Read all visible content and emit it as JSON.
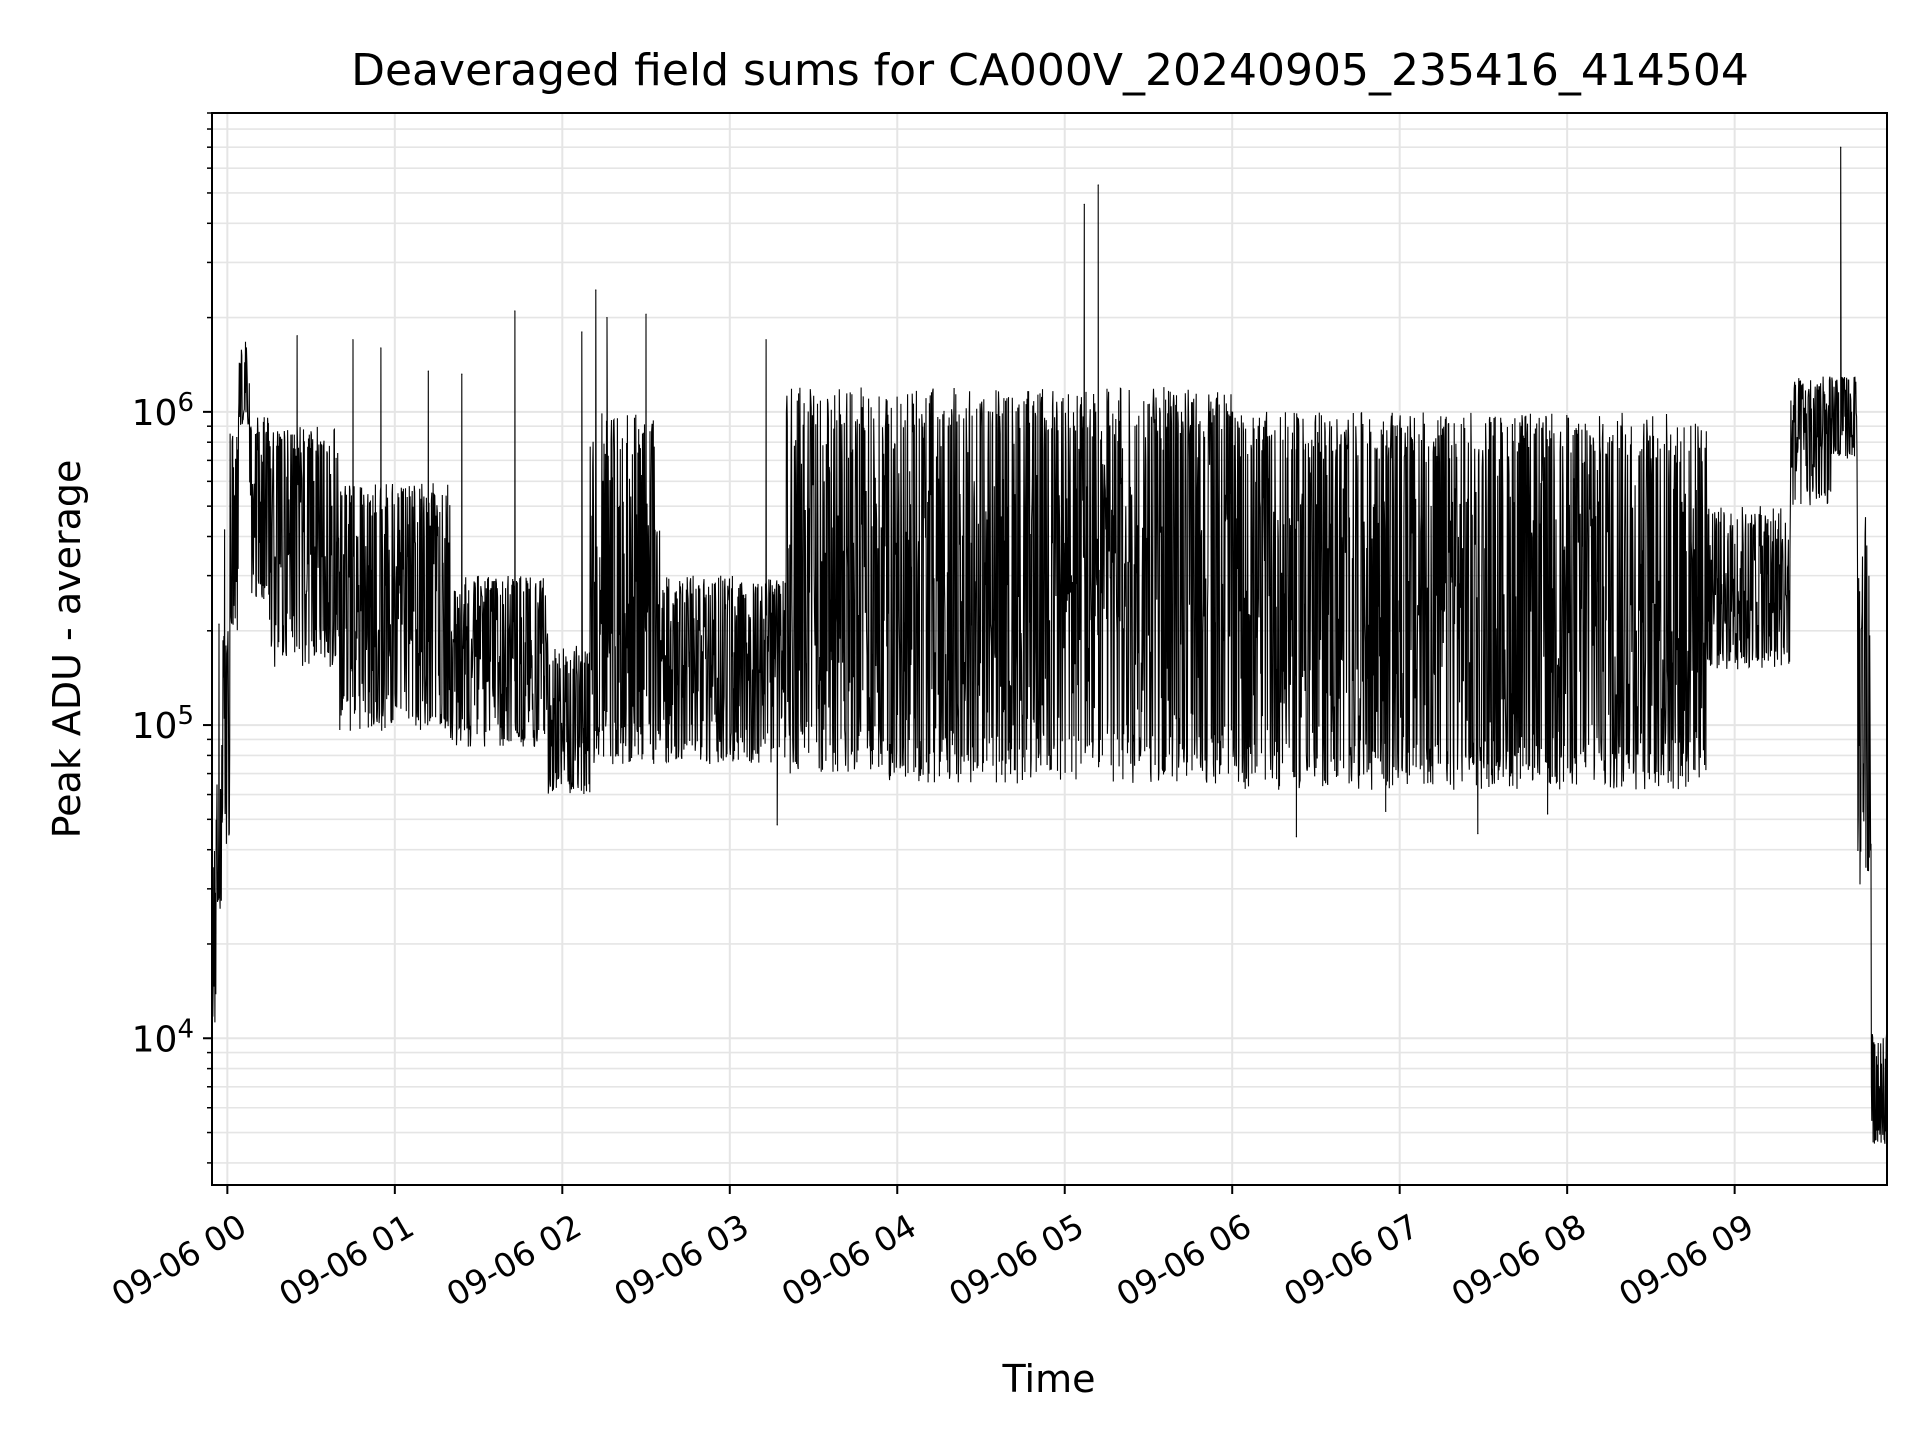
{
  "chart_data": {
    "type": "line",
    "title": "Deaveraged field sums for CA000V_20240905_235416_414504",
    "xlabel": "Time",
    "ylabel": "Peak ADU - average",
    "yscale": "log",
    "ylim": [
      3400,
      9000000
    ],
    "xlim": [
      "2024-09-05 23:54:30",
      "2024-09-06 09:54:35"
    ],
    "grid": true,
    "line_color": "#000000",
    "grid_color": "#e5e5e5",
    "x_ticks": [
      {
        "value": "2024-09-06 00:00",
        "label": "09-06 00"
      },
      {
        "value": "2024-09-06 01:00",
        "label": "09-06 01"
      },
      {
        "value": "2024-09-06 02:00",
        "label": "09-06 02"
      },
      {
        "value": "2024-09-06 03:00",
        "label": "09-06 03"
      },
      {
        "value": "2024-09-06 04:00",
        "label": "09-06 04"
      },
      {
        "value": "2024-09-06 05:00",
        "label": "09-06 05"
      },
      {
        "value": "2024-09-06 06:00",
        "label": "09-06 06"
      },
      {
        "value": "2024-09-06 07:00",
        "label": "09-06 07"
      },
      {
        "value": "2024-09-06 08:00",
        "label": "09-06 08"
      },
      {
        "value": "2024-09-06 09:00",
        "label": "09-06 09"
      }
    ],
    "y_ticks": [
      {
        "value": 10000,
        "base": "10",
        "exp": "4"
      },
      {
        "value": 100000,
        "base": "10",
        "exp": "5"
      },
      {
        "value": 1000000,
        "base": "10",
        "exp": "6"
      }
    ],
    "segments": [
      {
        "start": "2024-09-05 23:54:30",
        "end": "2024-09-05 23:56:00",
        "low": 11000,
        "high": 40000
      },
      {
        "start": "2024-09-05 23:56:00",
        "end": "2024-09-05 23:58:00",
        "low": 25000,
        "high": 70000
      },
      {
        "start": "2024-09-05 23:58:00",
        "end": "2024-09-06 00:01:00",
        "low": 40000,
        "high": 200000
      },
      {
        "start": "2024-09-06 00:01:00",
        "end": "2024-09-06 00:04:00",
        "low": 200000,
        "high": 900000
      },
      {
        "start": "2024-09-06 00:04:00",
        "end": "2024-09-06 00:08:00",
        "low": 900000,
        "high": 1700000
      },
      {
        "start": "2024-09-06 00:08:00",
        "end": "2024-09-06 00:15:00",
        "low": 250000,
        "high": 1000000
      },
      {
        "start": "2024-09-06 00:15:00",
        "end": "2024-09-06 00:40:00",
        "low": 150000,
        "high": 900000
      },
      {
        "start": "2024-09-06 00:40:00",
        "end": "2024-09-06 01:20:00",
        "low": 95000,
        "high": 600000
      },
      {
        "start": "2024-09-06 01:20:00",
        "end": "2024-09-06 01:55:00",
        "low": 85000,
        "high": 300000
      },
      {
        "start": "2024-09-06 01:55:00",
        "end": "2024-09-06 02:10:00",
        "low": 60000,
        "high": 180000
      },
      {
        "start": "2024-09-06 02:10:00",
        "end": "2024-09-06 02:35:00",
        "low": 75000,
        "high": 1000000
      },
      {
        "start": "2024-09-06 02:35:00",
        "end": "2024-09-06 03:20:00",
        "low": 75000,
        "high": 300000
      },
      {
        "start": "2024-09-06 03:20:00",
        "end": "2024-09-06 03:55:00",
        "low": 70000,
        "high": 1200000
      },
      {
        "start": "2024-09-06 03:55:00",
        "end": "2024-09-06 06:00:00",
        "low": 65000,
        "high": 1200000
      },
      {
        "start": "2024-09-06 06:00:00",
        "end": "2024-09-06 08:50:00",
        "low": 62000,
        "high": 1000000
      },
      {
        "start": "2024-09-06 08:50:00",
        "end": "2024-09-06 09:20:00",
        "low": 150000,
        "high": 500000
      },
      {
        "start": "2024-09-06 09:20:00",
        "end": "2024-09-06 09:35:00",
        "low": 500000,
        "high": 1300000
      },
      {
        "start": "2024-09-06 09:35:00",
        "end": "2024-09-06 09:44:00",
        "low": 700000,
        "high": 1300000
      },
      {
        "start": "2024-09-06 09:44:00",
        "end": "2024-09-06 09:49:00",
        "low": 30000,
        "high": 500000
      },
      {
        "start": "2024-09-06 09:49:00",
        "end": "2024-09-06 09:54:35",
        "low": 4600,
        "high": 10500
      }
    ],
    "spikes": [
      {
        "time": "2024-09-05 23:57:00",
        "value": 210000
      },
      {
        "time": "2024-09-05 23:59:00",
        "value": 420000
      },
      {
        "time": "2024-09-06 00:25:00",
        "value": 1750000
      },
      {
        "time": "2024-09-06 00:45:00",
        "value": 1700000
      },
      {
        "time": "2024-09-06 00:55:00",
        "value": 1600000
      },
      {
        "time": "2024-09-06 01:12:00",
        "value": 1350000
      },
      {
        "time": "2024-09-06 01:24:00",
        "value": 1320000
      },
      {
        "time": "2024-09-06 01:43:00",
        "value": 2100000
      },
      {
        "time": "2024-09-06 02:07:00",
        "value": 1800000
      },
      {
        "time": "2024-09-06 02:12:00",
        "value": 2450000
      },
      {
        "time": "2024-09-06 02:16:00",
        "value": 2000000
      },
      {
        "time": "2024-09-06 02:30:00",
        "value": 2050000
      },
      {
        "time": "2024-09-06 03:13:00",
        "value": 1700000
      },
      {
        "time": "2024-09-06 05:07:00",
        "value": 4600000
      },
      {
        "time": "2024-09-06 05:12:00",
        "value": 5300000
      },
      {
        "time": "2024-09-06 09:38:00",
        "value": 7000000
      }
    ],
    "dips": [
      {
        "time": "2024-09-06 03:17:00",
        "value": 48000
      },
      {
        "time": "2024-09-06 06:23:00",
        "value": 44000
      },
      {
        "time": "2024-09-06 07:28:00",
        "value": 45000
      },
      {
        "time": "2024-09-06 06:55:00",
        "value": 53000
      },
      {
        "time": "2024-09-06 07:53:00",
        "value": 52000
      }
    ]
  }
}
